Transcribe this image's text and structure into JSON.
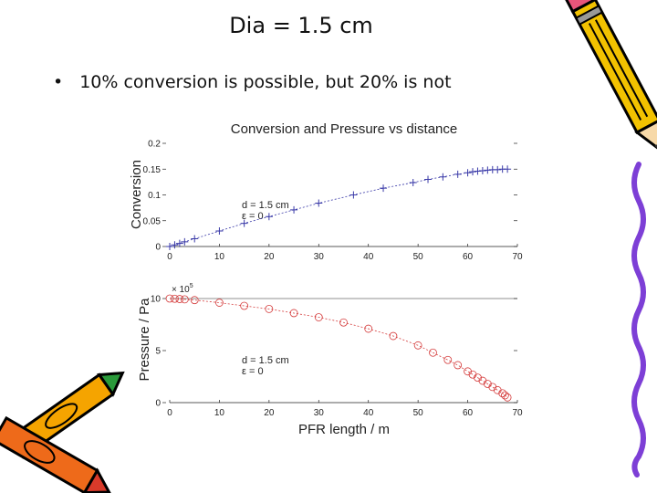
{
  "slide": {
    "title": "Dia = 1.5 cm",
    "bullet": "10% conversion is possible, but 20% is not"
  },
  "colors": {
    "conversion_series": "#3a3aa8",
    "pressure_series": "#d43a3a",
    "axis": "#222222"
  },
  "icons": [
    "pencil-icon",
    "crayons-icon"
  ],
  "chart_data": [
    {
      "type": "scatter",
      "title": "Conversion and Pressure vs distance",
      "xlabel": "",
      "ylabel": "Conversion",
      "xlim": [
        0,
        70
      ],
      "ylim": [
        0,
        0.2
      ],
      "xticks": [
        "0",
        "10",
        "20",
        "30",
        "40",
        "50",
        "60",
        "70"
      ],
      "yticks": [
        "0",
        "0.05",
        "0.1",
        "0.15",
        "0.2"
      ],
      "annotations": [
        "d = 1.5 cm",
        "ε = 0"
      ],
      "series": [
        {
          "marker": "+",
          "x": [
            0,
            1,
            2,
            3,
            5,
            10,
            15,
            20,
            25,
            30,
            37,
            43,
            49,
            52,
            55,
            58,
            60,
            61,
            62,
            63,
            64,
            65,
            66,
            67,
            68
          ],
          "y": [
            0.0,
            0.003,
            0.006,
            0.009,
            0.015,
            0.03,
            0.045,
            0.058,
            0.071,
            0.084,
            0.1,
            0.113,
            0.124,
            0.13,
            0.135,
            0.14,
            0.143,
            0.145,
            0.146,
            0.147,
            0.148,
            0.149,
            0.149,
            0.15,
            0.15
          ]
        }
      ]
    },
    {
      "type": "scatter",
      "title": "",
      "xlabel": "PFR length / m",
      "ylabel": "Pressure / Pa",
      "y_multiplier": "× 10",
      "y_multiplier_exp": "5",
      "xlim": [
        0,
        70
      ],
      "ylim": [
        0,
        10
      ],
      "xticks": [
        "0",
        "10",
        "20",
        "30",
        "40",
        "50",
        "60",
        "70"
      ],
      "yticks": [
        "0",
        "5",
        "10"
      ],
      "annotations": [
        "d = 1.5 cm",
        "ε = 0"
      ],
      "series": [
        {
          "marker": "o",
          "x": [
            0,
            1,
            2,
            3,
            5,
            10,
            15,
            20,
            25,
            30,
            35,
            40,
            45,
            50,
            53,
            56,
            58,
            60,
            61,
            62,
            63,
            64,
            65,
            66,
            67,
            67.5,
            68
          ],
          "y": [
            10.0,
            9.98,
            9.95,
            9.92,
            9.85,
            9.6,
            9.3,
            9.0,
            8.6,
            8.2,
            7.7,
            7.1,
            6.4,
            5.5,
            4.8,
            4.1,
            3.6,
            3.0,
            2.7,
            2.4,
            2.1,
            1.8,
            1.5,
            1.2,
            0.9,
            0.7,
            0.5
          ]
        }
      ]
    }
  ]
}
